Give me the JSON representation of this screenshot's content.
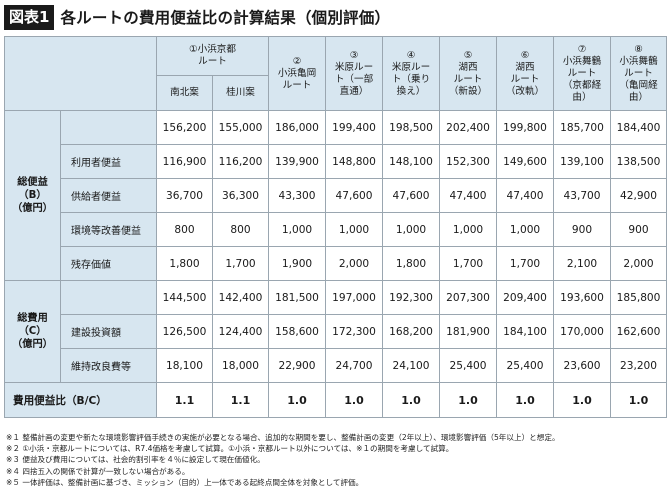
{
  "title": {
    "badge": "図表1",
    "text": "各ルートの費用便益比の計算結果（個別評価）"
  },
  "header": {
    "route1": "①小浜京都\nルート",
    "route1_sub": [
      "南北案",
      "桂川案"
    ],
    "routes": [
      "②\n小浜亀岡\nルート",
      "③\n米原ルー\nト（一部\n直通）",
      "④\n米原ルー\nト（乗り\n換え）",
      "⑤\n湖西\nルート\n（新設）",
      "⑥\n湖西\nルート\n（改軌）",
      "⑦\n小浜舞鶴\nルート\n（京都経\n由）",
      "⑧\n小浜舞鶴\nルート\n（亀岡経\n由）"
    ]
  },
  "benefit": {
    "label": "総便益\n（B）\n（億円）",
    "total": [
      "156,200",
      "155,000",
      "186,000",
      "199,400",
      "198,500",
      "202,400",
      "199,800",
      "185,700",
      "184,400"
    ],
    "rows": [
      {
        "label": "利用者便益",
        "values": [
          "116,900",
          "116,200",
          "139,900",
          "148,800",
          "148,100",
          "152,300",
          "149,600",
          "139,100",
          "138,500"
        ]
      },
      {
        "label": "供給者便益",
        "values": [
          "36,700",
          "36,300",
          "43,300",
          "47,600",
          "47,600",
          "47,400",
          "47,400",
          "43,700",
          "42,900"
        ]
      },
      {
        "label": "環境等改善便益",
        "values": [
          "800",
          "800",
          "1,000",
          "1,000",
          "1,000",
          "1,000",
          "1,000",
          "900",
          "900"
        ]
      },
      {
        "label": "残存価値",
        "values": [
          "1,800",
          "1,700",
          "1,900",
          "2,000",
          "1,800",
          "1,700",
          "1,700",
          "2,100",
          "2,000"
        ]
      }
    ]
  },
  "cost": {
    "label": "総費用\n（C）\n（億円）",
    "total": [
      "144,500",
      "142,400",
      "181,500",
      "197,000",
      "192,300",
      "207,300",
      "209,400",
      "193,600",
      "185,800"
    ],
    "rows": [
      {
        "label": "建設投資額",
        "values": [
          "126,500",
          "124,400",
          "158,600",
          "172,300",
          "168,200",
          "181,900",
          "184,100",
          "170,000",
          "162,600"
        ]
      },
      {
        "label": "維持改良費等",
        "values": [
          "18,100",
          "18,000",
          "22,900",
          "24,700",
          "24,100",
          "25,400",
          "25,400",
          "23,600",
          "23,200"
        ]
      }
    ]
  },
  "bc": {
    "label": "費用便益比（B/C）",
    "values": [
      "1.1",
      "1.1",
      "1.0",
      "1.0",
      "1.0",
      "1.0",
      "1.0",
      "1.0",
      "1.0"
    ]
  },
  "notes": [
    "※１ 整備計画の変更や新たな環境影響評価手続きの実施が必要となる場合、追加的な期間を要し、整備計画の変更（2年以上）、環境影響評価（5年以上）と想定。",
    "※２ ①小浜・京都ルートについては、R7.4価格を考慮して試算。①小浜・京都ルート以外については、※１の期間を考慮して試算。",
    "※３ 便益及び費用については、社会的割引率を４％に設定して現在価値化。",
    "※４ 四捨五入の関係で計算が一致しない場合がある。",
    "※５ 一体評価は、整備計画に基づき、ミッション（目的）上一体である起終点間全体を対象として評価。"
  ]
}
